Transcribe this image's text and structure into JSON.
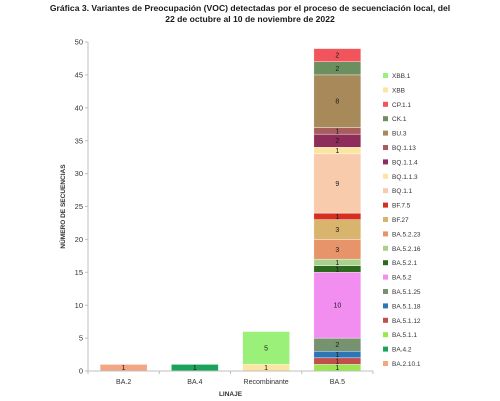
{
  "chart_data": {
    "type": "bar",
    "stacked": true,
    "title_line1": "Gráfica 3. Variantes de Preocupación (VOC) detectadas por el proceso de secuenciación local, del",
    "title_line2": "22 de octubre al 10 de noviembre de 2022",
    "xlabel": "LINAJE",
    "ylabel": "NÚMERO DE SECUENCIAS",
    "ylim": [
      0,
      50
    ],
    "yticks": [
      0,
      5,
      10,
      15,
      20,
      25,
      30,
      35,
      40,
      45,
      50
    ],
    "categories": [
      "BA.2",
      "BA.4",
      "Recombinante",
      "BA.5"
    ],
    "series": [
      {
        "name": "BA.2.10.1",
        "color": "#f4a582",
        "values": [
          1,
          0,
          0,
          0
        ]
      },
      {
        "name": "BA.4.2",
        "color": "#1aa35a",
        "values": [
          0,
          1,
          0,
          0
        ]
      },
      {
        "name": "BA.5.1.1",
        "color": "#99e64d",
        "values": [
          0,
          0,
          0,
          1
        ]
      },
      {
        "name": "BA.5.1.12",
        "color": "#c0504d",
        "values": [
          0,
          0,
          0,
          1
        ]
      },
      {
        "name": "BA.5.1.18",
        "color": "#2e75b6",
        "values": [
          0,
          0,
          0,
          1
        ]
      },
      {
        "name": "BA.5.1.25",
        "color": "#76926e",
        "values": [
          0,
          0,
          0,
          2
        ]
      },
      {
        "name": "BA.5.2",
        "color": "#f28ef0",
        "values": [
          0,
          0,
          0,
          10
        ]
      },
      {
        "name": "BA.5.2.1",
        "color": "#2d6a1f",
        "values": [
          0,
          0,
          0,
          1
        ]
      },
      {
        "name": "BA.5.2.16",
        "color": "#a9d18e",
        "values": [
          0,
          0,
          0,
          1
        ]
      },
      {
        "name": "BA.5.2.23",
        "color": "#e8946a",
        "values": [
          0,
          0,
          0,
          3
        ]
      },
      {
        "name": "BF.27",
        "color": "#d9b46c",
        "values": [
          0,
          0,
          0,
          3
        ]
      },
      {
        "name": "BF.7.5",
        "color": "#d4301f",
        "values": [
          0,
          0,
          0,
          1
        ]
      },
      {
        "name": "BQ.1.1",
        "color": "#f8cbad",
        "values": [
          0,
          0,
          0,
          9
        ]
      },
      {
        "name": "BQ.1.1.3",
        "color": "#fbe5a0",
        "values": [
          0,
          0,
          0,
          1
        ]
      },
      {
        "name": "BQ.1.1.4",
        "color": "#8e2c5a",
        "values": [
          0,
          0,
          0,
          2
        ]
      },
      {
        "name": "BQ.1.13",
        "color": "#a85d5d",
        "values": [
          0,
          0,
          0,
          1
        ]
      },
      {
        "name": "BU.3",
        "color": "#a88a5a",
        "values": [
          0,
          0,
          0,
          8
        ]
      },
      {
        "name": "CK.1",
        "color": "#6b8f5e",
        "values": [
          0,
          0,
          0,
          2
        ]
      },
      {
        "name": "CP.1.1",
        "color": "#f2545b",
        "values": [
          0,
          0,
          0,
          2
        ]
      },
      {
        "name": "XBB",
        "color": "#fde4a0",
        "values": [
          0,
          0,
          1,
          0
        ]
      },
      {
        "name": "XBB.1",
        "color": "#9bf07a",
        "values": [
          0,
          0,
          5,
          0
        ]
      }
    ]
  }
}
